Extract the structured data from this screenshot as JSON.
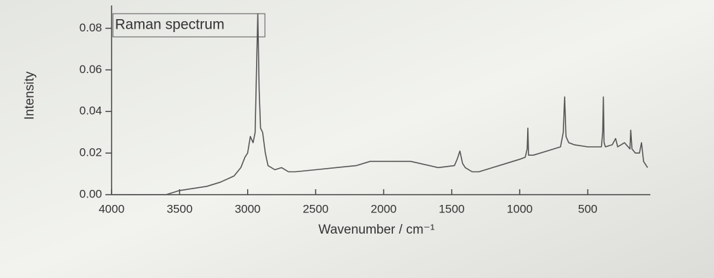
{
  "chart_data": {
    "type": "line",
    "annotation": "Raman spectrum",
    "x_label": "Wavenumber / cm⁻¹",
    "y_label": "Intensity",
    "xlim": [
      4000,
      40
    ],
    "ylim": [
      0,
      0.09
    ],
    "xticks": [
      4000,
      3500,
      3000,
      2500,
      2000,
      1500,
      1000,
      500
    ],
    "yticks": [
      {
        "value": 0,
        "label": "0.00"
      },
      {
        "value": 0.02,
        "label": "0.02"
      },
      {
        "value": 0.04,
        "label": "0.04"
      },
      {
        "value": 0.06,
        "label": "0.06"
      },
      {
        "value": 0.08,
        "label": "0.08"
      }
    ],
    "color": "#555555",
    "x": [
      4000,
      3600,
      3500,
      3300,
      3200,
      3100,
      3050,
      3020,
      3000,
      2980,
      2960,
      2945,
      2935,
      2925,
      2915,
      2905,
      2890,
      2870,
      2850,
      2800,
      2750,
      2700,
      2650,
      2500,
      2200,
      2100,
      2000,
      1800,
      1600,
      1480,
      1460,
      1440,
      1420,
      1400,
      1350,
      1300,
      1200,
      1100,
      1000,
      960,
      945,
      940,
      935,
      900,
      800,
      700,
      680,
      670,
      660,
      640,
      600,
      500,
      400,
      390,
      385,
      380,
      370,
      320,
      295,
      280,
      230,
      190,
      184,
      175,
      150,
      120,
      105,
      90,
      60
    ],
    "values": [
      0.0,
      0.0,
      0.002,
      0.004,
      0.006,
      0.009,
      0.013,
      0.018,
      0.02,
      0.028,
      0.025,
      0.03,
      0.06,
      0.087,
      0.05,
      0.032,
      0.03,
      0.02,
      0.014,
      0.012,
      0.013,
      0.011,
      0.011,
      0.012,
      0.014,
      0.016,
      0.016,
      0.016,
      0.013,
      0.014,
      0.017,
      0.021,
      0.015,
      0.013,
      0.011,
      0.011,
      0.013,
      0.015,
      0.017,
      0.018,
      0.022,
      0.032,
      0.019,
      0.019,
      0.021,
      0.023,
      0.03,
      0.047,
      0.028,
      0.025,
      0.024,
      0.023,
      0.023,
      0.03,
      0.047,
      0.025,
      0.023,
      0.024,
      0.027,
      0.023,
      0.025,
      0.022,
      0.031,
      0.022,
      0.02,
      0.02,
      0.025,
      0.016,
      0.013
    ]
  }
}
